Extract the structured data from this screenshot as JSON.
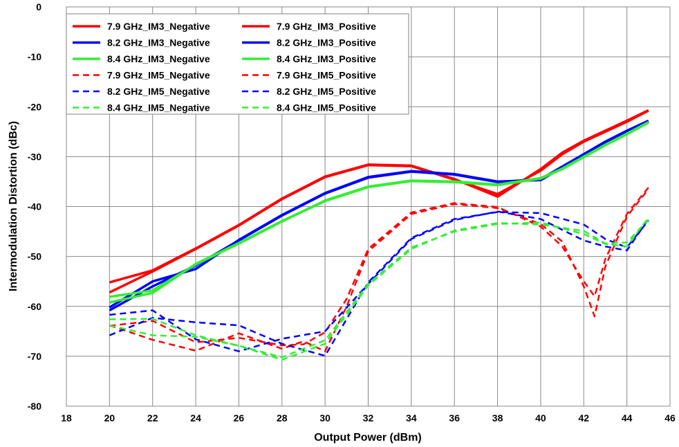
{
  "chart_data": {
    "type": "line",
    "title": "",
    "xlabel": "Output Power (dBm)",
    "ylabel": "Intermodulation Distortion (dBc)",
    "xlim": [
      18,
      46
    ],
    "ylim": [
      -80,
      0
    ],
    "xticks": [
      18,
      20,
      22,
      24,
      26,
      28,
      30,
      32,
      34,
      36,
      38,
      40,
      42,
      44,
      46
    ],
    "yticks": [
      0,
      -10,
      -20,
      -30,
      -40,
      -50,
      -60,
      -70,
      -80
    ],
    "grid": true,
    "legend_position": "top-left",
    "series": [
      {
        "name": "7.9 GHz_IM3_Negative",
        "color": "#ff0000",
        "dash": "solid",
        "x": [
          20,
          22,
          24,
          26,
          28,
          30,
          32,
          34,
          36,
          38,
          40,
          41,
          42,
          43,
          44,
          45
        ],
        "y": [
          -57.2,
          -53,
          -48.5,
          -43.8,
          -38.5,
          -34.1,
          -31.7,
          -31.9,
          -34.6,
          -37.5,
          -32.8,
          -29.5,
          -27,
          -25,
          -23,
          -20.8
        ]
      },
      {
        "name": "7.9 GHz_IM3_Positive",
        "color": "#ff0000",
        "dash": "solid",
        "x": [
          20,
          22,
          24,
          26,
          28,
          30,
          32,
          34,
          36,
          38,
          40,
          41,
          42,
          43,
          44,
          45
        ],
        "y": [
          -55.2,
          -52.8,
          -48.4,
          -43.7,
          -38.4,
          -34,
          -31.6,
          -31.8,
          -34.5,
          -38,
          -32.5,
          -29.2,
          -26.8,
          -24.8,
          -22.8,
          -20.7
        ]
      },
      {
        "name": "8.2 GHz_IM3_Negative",
        "color": "#0000ff",
        "dash": "solid",
        "x": [
          20,
          22,
          24,
          26,
          28,
          30,
          32,
          34,
          36,
          38,
          40,
          41,
          42,
          43,
          44,
          45
        ],
        "y": [
          -60.8,
          -56,
          -51.8,
          -46.8,
          -41.8,
          -37.4,
          -34.2,
          -33,
          -33.6,
          -35.1,
          -34.5,
          -32,
          -29.5,
          -27,
          -24.8,
          -22.8
        ]
      },
      {
        "name": "8.2 GHz_IM3_Positive",
        "color": "#0000ff",
        "dash": "solid",
        "x": [
          20,
          22,
          24,
          26,
          28,
          30,
          32,
          34,
          36,
          38,
          40,
          41,
          42,
          43,
          44,
          45
        ],
        "y": [
          -60.2,
          -55,
          -52.5,
          -46.7,
          -41.7,
          -37.3,
          -34.1,
          -32.9,
          -33.5,
          -35,
          -34.7,
          -32.2,
          -29.6,
          -27.1,
          -24.9,
          -22.9
        ]
      },
      {
        "name": "8.4 GHz_IM3_Negative",
        "color": "#33ee33",
        "dash": "solid",
        "x": [
          20,
          22,
          24,
          26,
          28,
          30,
          32,
          34,
          36,
          38,
          40,
          41,
          42,
          43,
          44,
          45
        ],
        "y": [
          -58.1,
          -56.8,
          -51.6,
          -47.4,
          -43,
          -38.8,
          -36,
          -34.8,
          -35,
          -35.6,
          -34.3,
          -32.4,
          -30,
          -27.6,
          -25.4,
          -23.1
        ]
      },
      {
        "name": "8.4 GHz_IM3_Positive",
        "color": "#33ee33",
        "dash": "solid",
        "x": [
          20,
          22,
          24,
          26,
          28,
          30,
          32,
          34,
          36,
          38,
          40,
          41,
          42,
          43,
          44,
          45
        ],
        "y": [
          -59.2,
          -57.3,
          -51.5,
          -47.3,
          -42.9,
          -38.9,
          -36.1,
          -34.9,
          -35.1,
          -35.7,
          -34.4,
          -32.5,
          -30.1,
          -27.7,
          -25.5,
          -23.2
        ]
      },
      {
        "name": "7.9 GHz_IM5_Negative",
        "color": "#ff0000",
        "dash": "dashed",
        "x": [
          20,
          22,
          24,
          26,
          28,
          29,
          30,
          31,
          32,
          34,
          36,
          38,
          40,
          41,
          42,
          42.5,
          43,
          44,
          45
        ],
        "y": [
          -63.8,
          -66.7,
          -68.9,
          -65.4,
          -68.5,
          -67,
          -69,
          -60,
          -49,
          -41.5,
          -39.5,
          -40.3,
          -43.5,
          -47,
          -56,
          -62,
          -52,
          -42,
          -36.5
        ]
      },
      {
        "name": "7.9 GHz_IM5_Positive",
        "color": "#ff0000",
        "dash": "dashed",
        "x": [
          20,
          22,
          24,
          26,
          28,
          29,
          30,
          31,
          32,
          34,
          36,
          38,
          40,
          41,
          42,
          42.5,
          43,
          44,
          45
        ],
        "y": [
          -63.9,
          -62.9,
          -67.2,
          -66.3,
          -67.8,
          -67.6,
          -65.2,
          -58.5,
          -48.5,
          -41.2,
          -39.3,
          -40.1,
          -44,
          -48,
          -55,
          -58,
          -50.5,
          -41.5,
          -36.2
        ]
      },
      {
        "name": "8.2 GHz_IM5_Negative",
        "color": "#0000ff",
        "dash": "dashed",
        "x": [
          20,
          22,
          24,
          26,
          28,
          30,
          32,
          34,
          36,
          38,
          40,
          42,
          43,
          44,
          45
        ],
        "y": [
          -61.7,
          -60.8,
          -66.6,
          -69,
          -66.5,
          -65,
          -55.5,
          -46.5,
          -42.7,
          -41,
          -42.5,
          -46.8,
          -48,
          -48.8,
          -42.5
        ]
      },
      {
        "name": "8.2 GHz_IM5_Positive",
        "color": "#0000ff",
        "dash": "dashed",
        "x": [
          20,
          22,
          24,
          26,
          28,
          30,
          32,
          34,
          36,
          38,
          40,
          42,
          43,
          44,
          45
        ],
        "y": [
          -65.8,
          -62.3,
          -63.2,
          -63.8,
          -67.5,
          -69.9,
          -55.2,
          -46.3,
          -42.5,
          -41.1,
          -41.3,
          -43.6,
          -46.5,
          -48.2,
          -42.8
        ]
      },
      {
        "name": "8.4 GHz_IM5_Negative",
        "color": "#33ee33",
        "dash": "dashed",
        "x": [
          20,
          22,
          24,
          26,
          28,
          30,
          32,
          34,
          36,
          38,
          40,
          42,
          43,
          44,
          45
        ],
        "y": [
          -62.6,
          -62.5,
          -65.8,
          -67.9,
          -70.2,
          -66.8,
          -55.5,
          -48.2,
          -45,
          -43.5,
          -43.2,
          -45.5,
          -47.5,
          -48,
          -42.2
        ]
      },
      {
        "name": "8.4 GHz_IM5_Positive",
        "color": "#33ee33",
        "dash": "dashed",
        "x": [
          20,
          22,
          24,
          26,
          28,
          30,
          32,
          34,
          36,
          38,
          40,
          42,
          43,
          44,
          45
        ],
        "y": [
          -63.8,
          -65.8,
          -66.1,
          -67.9,
          -70.7,
          -67.5,
          -55.8,
          -48.5,
          -44.8,
          -43.3,
          -43.6,
          -44.9,
          -47.4,
          -47.2,
          -42.6
        ]
      }
    ]
  }
}
